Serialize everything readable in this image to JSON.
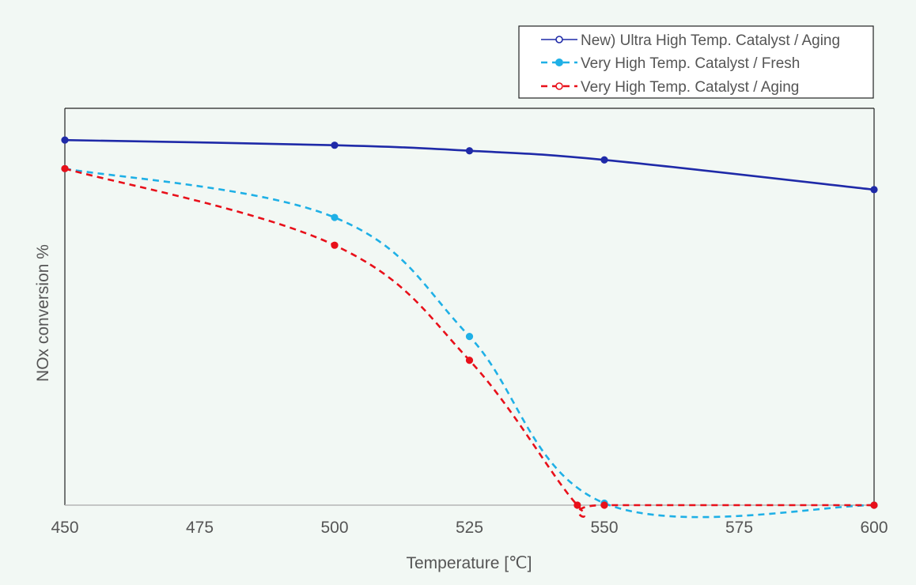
{
  "chart_data": {
    "type": "line",
    "xlabel": "Temperature [℃]",
    "ylabel": "NOx conversion %",
    "xlim": [
      450,
      600
    ],
    "x_ticks": [
      "450",
      "475",
      "500",
      "525",
      "550",
      "575",
      "600"
    ],
    "y_tick_labels_shown": false,
    "grid": false,
    "legend_position": "top-right",
    "series": [
      {
        "name": "New) Ultra High Temp. Catalyst / Aging",
        "color": "#1f2aa8",
        "line_style": "solid",
        "x": [
          450,
          500,
          525,
          550,
          600
        ],
        "y": [
          92,
          90.7,
          89.3,
          87,
          79.5
        ]
      },
      {
        "name": "Very High Temp. Catalyst / Fresh",
        "color": "#1fb0e6",
        "line_style": "dashed",
        "x": [
          450,
          500,
          525,
          550,
          600
        ],
        "y": [
          84.8,
          72.5,
          42.5,
          0.5,
          0
        ]
      },
      {
        "name": "Very High Temp. Catalyst / Aging",
        "color": "#e8101a",
        "line_style": "dashed",
        "x": [
          450,
          500,
          525,
          545,
          550,
          600
        ],
        "y": [
          84.8,
          65.5,
          36.5,
          0,
          0,
          0
        ]
      }
    ]
  }
}
